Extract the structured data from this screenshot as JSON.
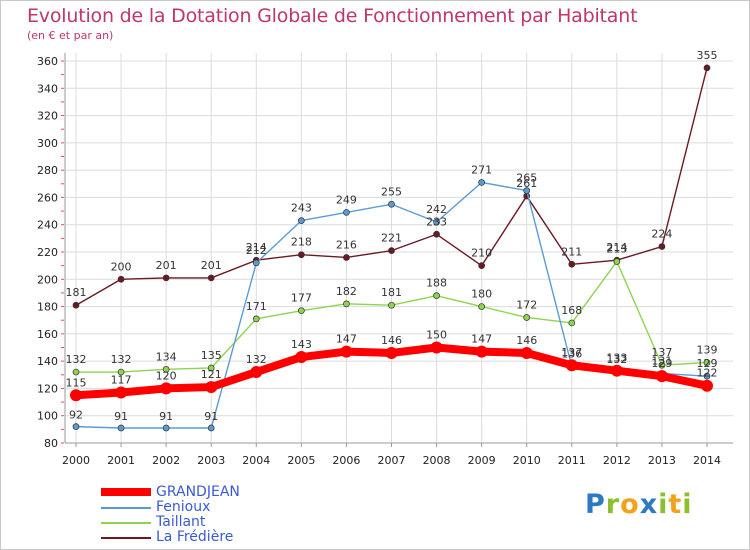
{
  "chart_data": {
    "type": "line",
    "title": "Evolution de la Dotation Globale de Fonctionnement par Habitant",
    "subtitle": "(en € et par an)",
    "x": [
      "2000",
      "2001",
      "2002",
      "2003",
      "2004",
      "2005",
      "2006",
      "2007",
      "2008",
      "2009",
      "2010",
      "2011",
      "2012",
      "2013",
      "2014"
    ],
    "ylim": [
      80,
      360
    ],
    "yticks": [
      80,
      100,
      120,
      140,
      160,
      180,
      200,
      220,
      240,
      260,
      280,
      300,
      320,
      340,
      360
    ],
    "series": [
      {
        "name": "GRANDJEAN",
        "color": "#ff0000",
        "values": [
          115,
          117,
          120,
          121,
          132,
          143,
          147,
          146,
          150,
          147,
          146,
          137,
          133,
          129,
          122
        ]
      },
      {
        "name": "Fenioux",
        "color": "#5b9bd5",
        "values": [
          92,
          91,
          91,
          91,
          212,
          243,
          249,
          255,
          242,
          271,
          265,
          136,
          132,
          131,
          129
        ]
      },
      {
        "name": "Taillant",
        "color": "#8fd44f",
        "values": [
          132,
          132,
          134,
          135,
          171,
          177,
          182,
          181,
          188,
          180,
          172,
          168,
          213,
          137,
          139
        ]
      },
      {
        "name": "La Frédière",
        "color": "#6b1a24",
        "values": [
          181,
          200,
          201,
          201,
          214,
          218,
          216,
          221,
          233,
          210,
          261,
          211,
          214,
          224,
          355
        ]
      }
    ]
  },
  "legend": {
    "items": [
      {
        "label": "GRANDJEAN",
        "color": "#ff0000"
      },
      {
        "label": "Fenioux",
        "color": "#5b9bd5"
      },
      {
        "label": "Taillant",
        "color": "#8fd44f"
      },
      {
        "label": "La Frédière",
        "color": "#6b1a24"
      }
    ]
  },
  "logo": {
    "letters": [
      "P",
      "r",
      "o",
      "x",
      "i",
      "t",
      "i"
    ]
  }
}
